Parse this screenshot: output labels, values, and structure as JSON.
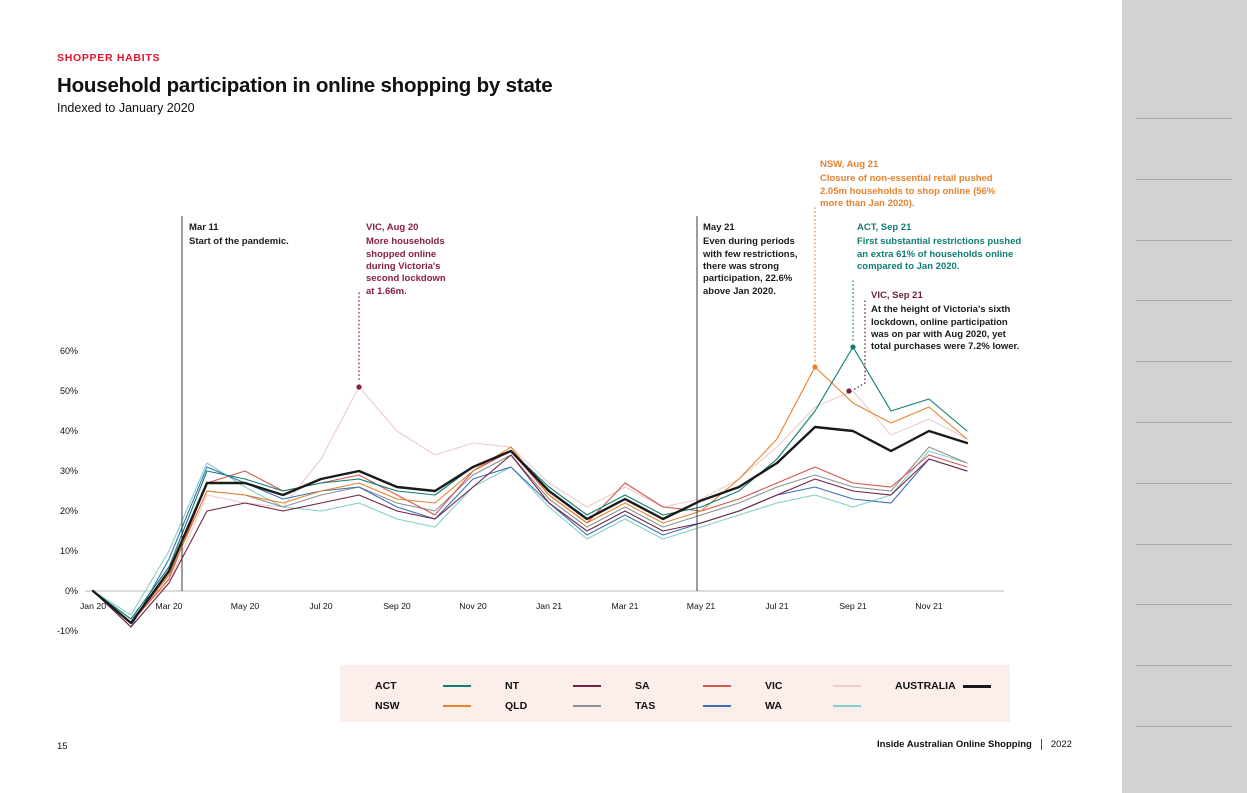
{
  "page": {
    "eyebrow": "SHOPPER HABITS",
    "title": "Household participation in online shopping by state",
    "subtitle": "Indexed to January 2020",
    "page_number": "15",
    "footer": {
      "title": "Inside Australian Online Shopping",
      "year": "2022"
    }
  },
  "chart_data": {
    "type": "line",
    "title": "Household participation in online shopping by state",
    "subtitle": "Indexed to January 2020",
    "unit": "%",
    "grid": false,
    "legend_position": "bottom",
    "ylim": [
      -12,
      66
    ],
    "yticks": [
      60,
      50,
      40,
      30,
      20,
      10,
      0,
      -10
    ],
    "x": [
      "Jan 20",
      "Feb 20",
      "Mar 20",
      "Apr 20",
      "May 20",
      "Jun 20",
      "Jul 20",
      "Aug 20",
      "Sep 20",
      "Oct 20",
      "Nov 20",
      "Dec 20",
      "Jan 21",
      "Feb 21",
      "Mar 21",
      "Apr 21",
      "May 21",
      "Jun 21",
      "Jul 21",
      "Aug 21",
      "Sep 21",
      "Oct 21",
      "Nov 21",
      "Dec 21"
    ],
    "x_tick_labels": [
      "Jan 20",
      "Mar 20",
      "May 20",
      "Jul 20",
      "Sep 20",
      "Nov 20",
      "Jan 21",
      "Mar 21",
      "May 21",
      "Jul 21",
      "Sep 21",
      "Nov 21"
    ],
    "series": [
      {
        "name": "VIC",
        "color": "#edccc9",
        "values": [
          0,
          -7,
          2,
          24,
          22,
          21,
          33,
          51,
          40,
          34,
          37,
          36,
          27,
          21,
          26,
          21,
          23,
          28,
          36,
          46,
          50,
          39,
          43,
          38
        ]
      },
      {
        "name": "WA",
        "color": "#85cfc9",
        "values": [
          0,
          -6,
          10,
          32,
          26,
          21,
          20,
          22,
          18,
          16,
          26,
          31,
          21,
          13,
          18,
          13,
          16,
          19,
          22,
          24,
          21,
          24,
          35,
          32
        ]
      },
      {
        "name": "QLD",
        "color": "#8d9296",
        "values": [
          0,
          -8,
          4,
          25,
          24,
          21,
          24,
          26,
          22,
          20,
          29,
          34,
          23,
          16,
          21,
          16,
          19,
          22,
          26,
          29,
          26,
          25,
          36,
          32
        ]
      },
      {
        "name": "TAS",
        "color": "#3d6fb6",
        "values": [
          0,
          -9,
          8,
          31,
          27,
          23,
          25,
          26,
          21,
          18,
          28,
          31,
          22,
          14,
          19,
          14,
          17,
          20,
          24,
          26,
          23,
          22,
          33,
          30
        ]
      },
      {
        "name": "SA",
        "color": "#d4574e",
        "values": [
          0,
          -8,
          3,
          27,
          30,
          25,
          27,
          29,
          24,
          19,
          30,
          35,
          24,
          17,
          27,
          21,
          20,
          23,
          27,
          31,
          27,
          26,
          34,
          31
        ]
      },
      {
        "name": "NT",
        "color": "#702342",
        "values": [
          0,
          -9,
          2,
          20,
          22,
          20,
          22,
          24,
          20,
          18,
          26,
          34,
          22,
          15,
          20,
          15,
          17,
          20,
          24,
          28,
          25,
          24,
          33,
          30
        ]
      },
      {
        "name": "NSW",
        "color": "#e8822d",
        "values": [
          0,
          -8,
          4,
          25,
          24,
          22,
          25,
          27,
          23,
          22,
          30,
          36,
          24,
          17,
          22,
          17,
          20,
          28,
          38,
          56,
          47,
          42,
          46,
          38
        ]
      },
      {
        "name": "ACT",
        "color": "#0e7d74",
        "values": [
          0,
          -7,
          6,
          30,
          28,
          25,
          27,
          28,
          25,
          24,
          31,
          35,
          26,
          19,
          24,
          19,
          21,
          25,
          33,
          45,
          61,
          45,
          48,
          40
        ]
      },
      {
        "name": "AUSTRALIA",
        "color": "#1a1a1a",
        "emphasis": true,
        "values": [
          0,
          -8,
          5,
          27,
          27,
          24,
          28,
          30,
          26,
          25,
          31,
          35,
          25,
          18,
          23,
          18,
          22.6,
          26,
          32,
          41,
          40,
          35,
          40,
          37
        ]
      }
    ],
    "legend_order": [
      "ACT",
      "NT",
      "SA",
      "VIC",
      "AUSTRALIA",
      "NSW",
      "QLD",
      "TAS",
      "WA"
    ],
    "annotations": [
      {
        "id": "mar11",
        "title": "Mar 11",
        "text": "Start of the pandemic.",
        "color": "#1a1a1a",
        "style": "solid-vline",
        "month": "Mar 20"
      },
      {
        "id": "vic-aug20",
        "title": "VIC, Aug 20",
        "text": "More households shopped online during Victoria's second lockdown at 1.66m.",
        "color": "#8a1e41",
        "style": "dotted-vline",
        "month": "Aug 20",
        "point_value": 51
      },
      {
        "id": "may21",
        "title": "May 21",
        "text": "Even during periods with few restrictions, there was strong participation, 22.6% above Jan 2020.",
        "color": "#1a1a1a",
        "style": "solid-vline",
        "month": "May 21"
      },
      {
        "id": "nsw-aug21",
        "title": "NSW, Aug 21",
        "text": "Closure of non-essential retail pushed 2.05m households to shop online (56% more than Jan 2020).",
        "color": "#e8822d",
        "style": "dotted-vline",
        "month": "Aug 21",
        "point_value": 56
      },
      {
        "id": "act-sep21",
        "title": "ACT, Sep 21",
        "text": "First substantial restrictions pushed an extra 61% of households online compared to Jan 2020.",
        "color": "#0e7d74",
        "style": "dotted-vline",
        "month": "Sep 21",
        "point_value": 61
      },
      {
        "id": "vic-sep21",
        "title": "VIC, Sep 21",
        "text": "At the height of Victoria's sixth lockdown, online participation was on par with Aug 2020, yet total purchases were 7.2% lower.",
        "color": "#6d1f42",
        "text_color": "#1a1a1a",
        "style": "dotted-connector",
        "month": "Sep 21",
        "point_value": 50
      }
    ]
  }
}
